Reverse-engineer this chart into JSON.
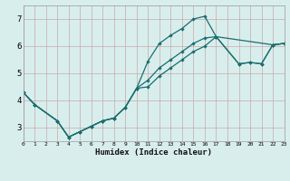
{
  "title": "",
  "xlabel": "Humidex (Indice chaleur)",
  "xlim": [
    0,
    23
  ],
  "ylim": [
    2.5,
    7.5
  ],
  "xticks": [
    0,
    1,
    2,
    3,
    4,
    5,
    6,
    7,
    8,
    9,
    10,
    11,
    12,
    13,
    14,
    15,
    16,
    17,
    18,
    19,
    20,
    21,
    22,
    23
  ],
  "yticks": [
    3,
    4,
    5,
    6,
    7
  ],
  "background_color": "#d8eeed",
  "grid_color": "#c8a8a8",
  "line_color": "#1a6e6e",
  "line1_x": [
    0,
    1,
    3,
    4,
    5,
    6,
    7,
    8,
    9,
    10,
    11,
    12,
    13,
    14,
    15,
    16,
    17,
    22,
    23
  ],
  "line1_y": [
    4.3,
    3.85,
    3.25,
    2.65,
    2.85,
    3.05,
    3.25,
    3.35,
    3.75,
    4.45,
    5.45,
    6.1,
    6.4,
    6.65,
    7.0,
    7.1,
    6.35,
    6.05,
    6.1
  ],
  "line2_x": [
    0,
    1,
    3,
    4,
    5,
    6,
    7,
    8,
    9,
    10,
    11,
    12,
    13,
    14,
    15,
    16,
    17,
    19,
    20,
    21,
    22,
    23
  ],
  "line2_y": [
    4.3,
    3.85,
    3.25,
    2.65,
    2.85,
    3.05,
    3.25,
    3.35,
    3.75,
    4.45,
    4.75,
    5.2,
    5.5,
    5.8,
    6.1,
    6.3,
    6.35,
    5.35,
    5.4,
    5.35,
    6.05,
    6.1
  ],
  "line3_x": [
    0,
    1,
    3,
    4,
    5,
    6,
    7,
    8,
    9,
    10,
    11,
    12,
    13,
    14,
    15,
    16,
    17,
    19,
    20,
    21,
    22,
    23
  ],
  "line3_y": [
    4.3,
    3.85,
    3.25,
    2.65,
    2.85,
    3.05,
    3.25,
    3.35,
    3.75,
    4.45,
    4.5,
    4.9,
    5.2,
    5.5,
    5.8,
    6.0,
    6.35,
    5.35,
    5.4,
    5.35,
    6.05,
    6.1
  ]
}
